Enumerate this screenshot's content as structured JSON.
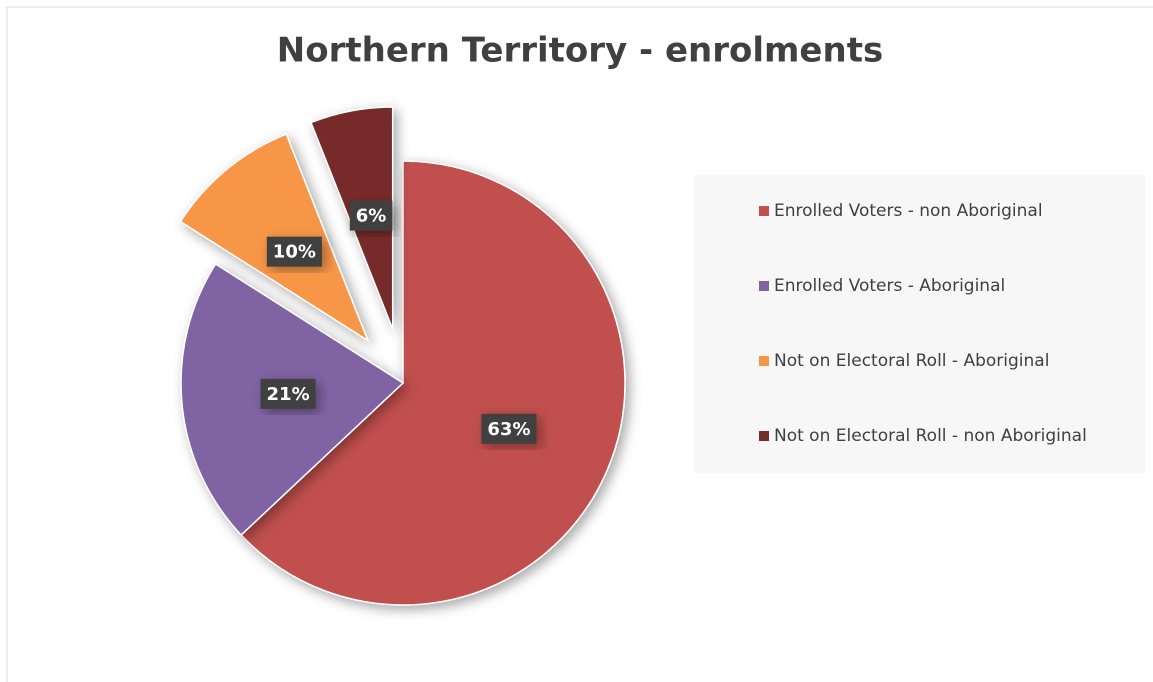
{
  "chart_data": {
    "type": "pie",
    "title": "Northern Territory - enrolments",
    "categories": [
      "Enrolled Voters - non Aboriginal",
      "Enrolled Voters - Aboriginal",
      "Not on Electoral Roll - Aboriginal",
      "Not on Electoral Roll - non Aboriginal"
    ],
    "values": [
      63,
      21,
      10,
      6
    ],
    "value_labels": [
      "63%",
      "21%",
      "10%",
      "6%"
    ],
    "colors": [
      "#c0504d",
      "#8064a2",
      "#f79646",
      "#772c2a"
    ],
    "explode": [
      false,
      false,
      true,
      true
    ],
    "legend": "right"
  }
}
